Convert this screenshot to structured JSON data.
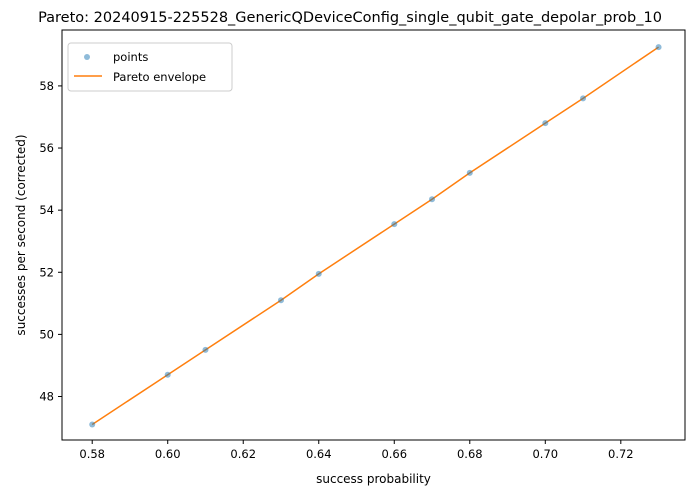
{
  "chart_data": {
    "type": "scatter",
    "title": "Pareto: 20240915-225528_GenericQDeviceConfig_single_qubit_gate_depolar_prob_10",
    "xlabel": "success probability",
    "ylabel": "successes per second (corrected)",
    "xlim": [
      0.572,
      0.737
    ],
    "ylim": [
      46.6,
      59.8
    ],
    "xticks": [
      "0.58",
      "0.60",
      "0.62",
      "0.64",
      "0.66",
      "0.68",
      "0.70",
      "0.72"
    ],
    "yticks": [
      "48",
      "50",
      "52",
      "54",
      "56",
      "58"
    ],
    "legend_position": "top-left",
    "grid": false,
    "series": [
      {
        "name": "points",
        "kind": "scatter",
        "color": "#1f77b4",
        "x": [
          0.58,
          0.6,
          0.61,
          0.63,
          0.64,
          0.66,
          0.67,
          0.68,
          0.7,
          0.71,
          0.73
        ],
        "y": [
          47.1,
          48.7,
          49.5,
          51.1,
          51.95,
          53.55,
          54.35,
          55.2,
          56.8,
          57.6,
          59.25
        ]
      },
      {
        "name": "Pareto envelope",
        "kind": "line",
        "color": "#ff7f0e",
        "x": [
          0.58,
          0.6,
          0.61,
          0.63,
          0.64,
          0.66,
          0.67,
          0.68,
          0.7,
          0.71,
          0.73
        ],
        "y": [
          47.1,
          48.7,
          49.5,
          51.1,
          51.95,
          53.55,
          54.35,
          55.2,
          56.8,
          57.6,
          59.25
        ]
      }
    ]
  }
}
